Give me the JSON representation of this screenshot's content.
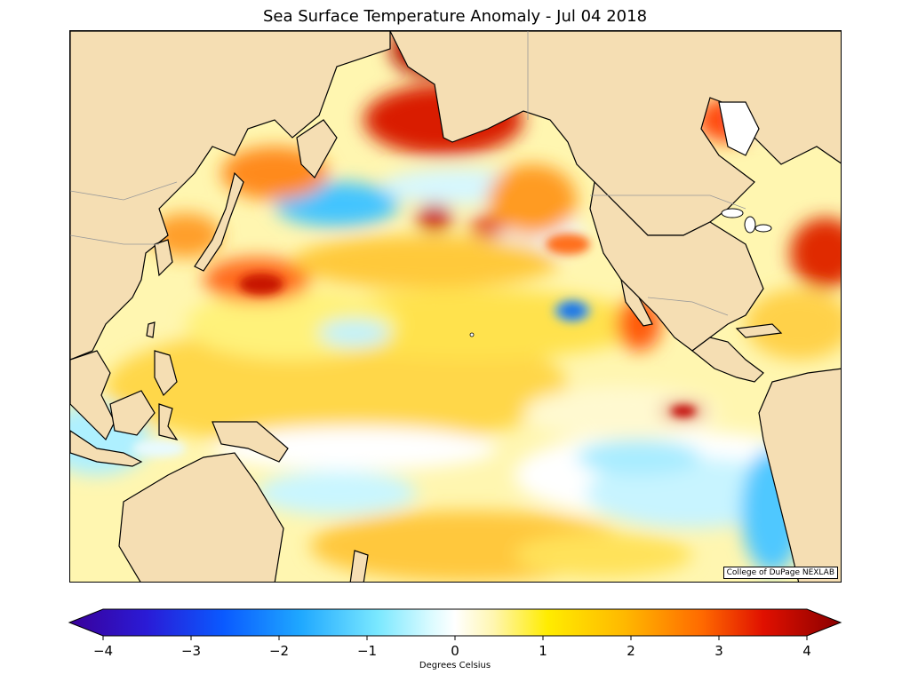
{
  "title": "Sea Surface Temperature Anomaly - Jul 04 2018",
  "credit": "College of DuPage NEXLAB",
  "colorbar": {
    "label": "Degrees Celsius",
    "ticks": [
      "−4",
      "−3",
      "−2",
      "−1",
      "0",
      "1",
      "2",
      "3",
      "4"
    ],
    "min": -4,
    "max": 4
  },
  "colors": {
    "land": "#f5deb3",
    "coast": "#000000",
    "border": "#999999"
  }
}
